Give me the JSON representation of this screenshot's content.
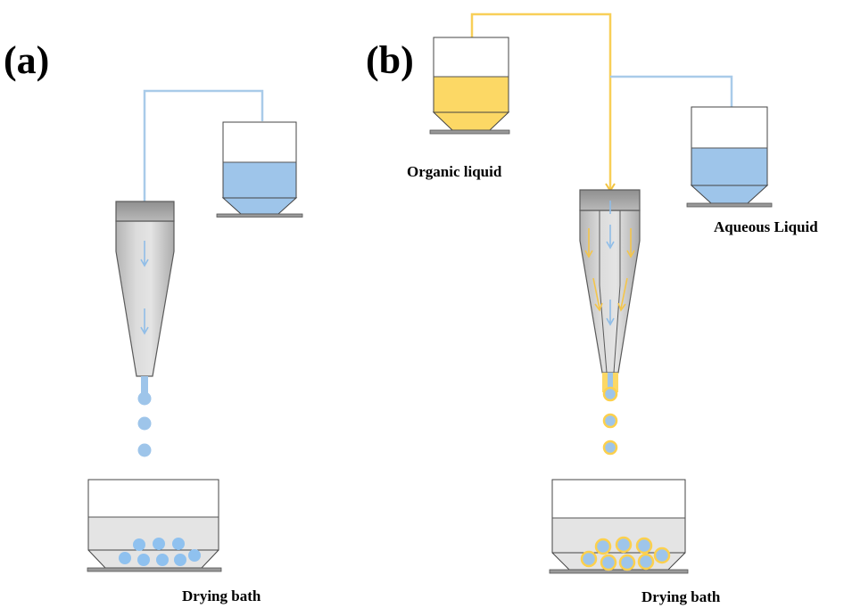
{
  "panels": {
    "a": {
      "label": "(a)",
      "drying_bath_label": "Drying bath"
    },
    "b": {
      "label": "(b)",
      "organic_label": "Organic liquid",
      "aqueous_label": "Aqueous Liquid",
      "drying_bath_label": "Drying bath"
    }
  },
  "colors": {
    "aqueous": "#9ec5ea",
    "aqueous_line": "#a9cbe9",
    "organic": "#fcd865",
    "organic_line": "#f8cf58",
    "nozzle_body": "#c9c9c9",
    "nozzle_cap": "#9b9b9b",
    "bath_fill": "#e4e4e4"
  }
}
